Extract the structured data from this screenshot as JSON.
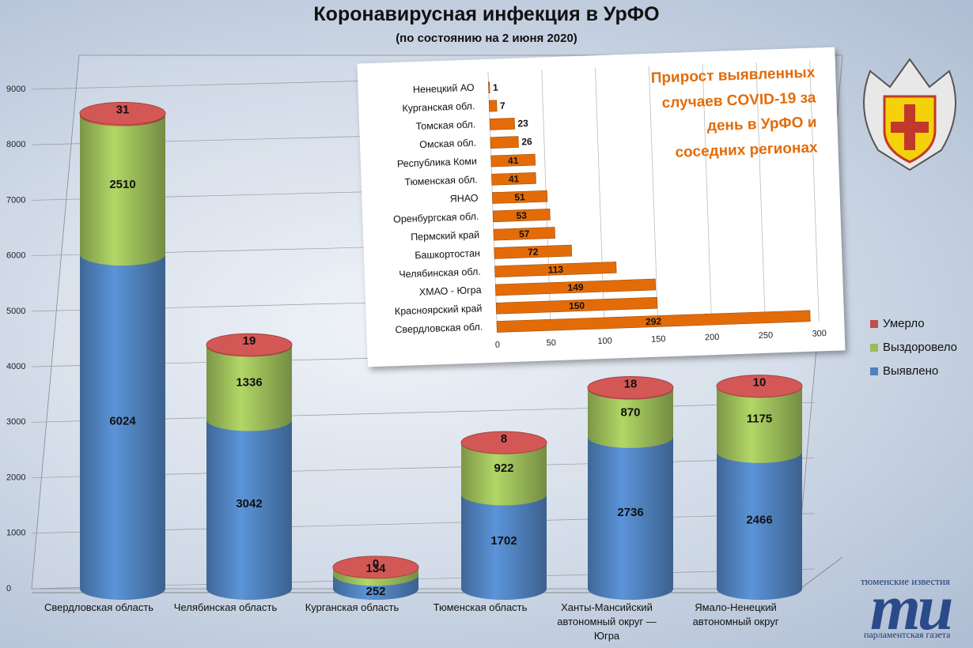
{
  "title": "Коронавирусная инфекция в УрФО",
  "subtitle": "(по состоянию на 2 июня 2020)",
  "chart_data": [
    {
      "type": "stacked-cylinder",
      "categories": [
        "Свердловская область",
        "Челябинская область",
        "Курганская область",
        "Тюменская область",
        "Ханты-Мансийский автономный округ — Югра",
        "Ямало-Ненецкий автономный округ"
      ],
      "series": [
        {
          "name": "Выявлено",
          "color": "#4f81bd",
          "values": [
            6024,
            3042,
            252,
            1702,
            2736,
            2466
          ]
        },
        {
          "name": "Выздоровело",
          "color": "#9bbb59",
          "values": [
            2510,
            1336,
            134,
            922,
            870,
            1175
          ]
        },
        {
          "name": "Умерло",
          "color": "#c0504d",
          "values": [
            31,
            19,
            0,
            8,
            18,
            10
          ]
        }
      ],
      "ylim": [
        0,
        9000
      ],
      "yticks": [
        0,
        1000,
        2000,
        3000,
        4000,
        5000,
        6000,
        7000,
        8000,
        9000
      ],
      "grid": true,
      "legend": "right"
    },
    {
      "type": "hbar",
      "title": "Прирост выявленных случаев COVID-19 за день в УрФО и соседних регионах",
      "categories": [
        "Ненецкий АО",
        "Курганская обл.",
        "Томская обл.",
        "Омская обл.",
        "Республика Коми",
        "Тюменская обл.",
        "ЯНАО",
        "Оренбургская обл.",
        "Пермский край",
        "Башкортостан",
        "Челябинская обл.",
        "ХМАО - Югра",
        "Красноярский край",
        "Свердловская обл."
      ],
      "values": [
        1,
        7,
        23,
        26,
        41,
        41,
        51,
        53,
        57,
        72,
        113,
        149,
        150,
        292
      ],
      "color": "#e36c09",
      "xlim": [
        0,
        300
      ],
      "xticks": [
        0,
        50,
        100,
        150,
        200,
        250,
        300
      ],
      "grid": true
    }
  ],
  "branding": {
    "top": "тюменские известия",
    "logo": "ти",
    "bottom": "парламентская газета"
  }
}
